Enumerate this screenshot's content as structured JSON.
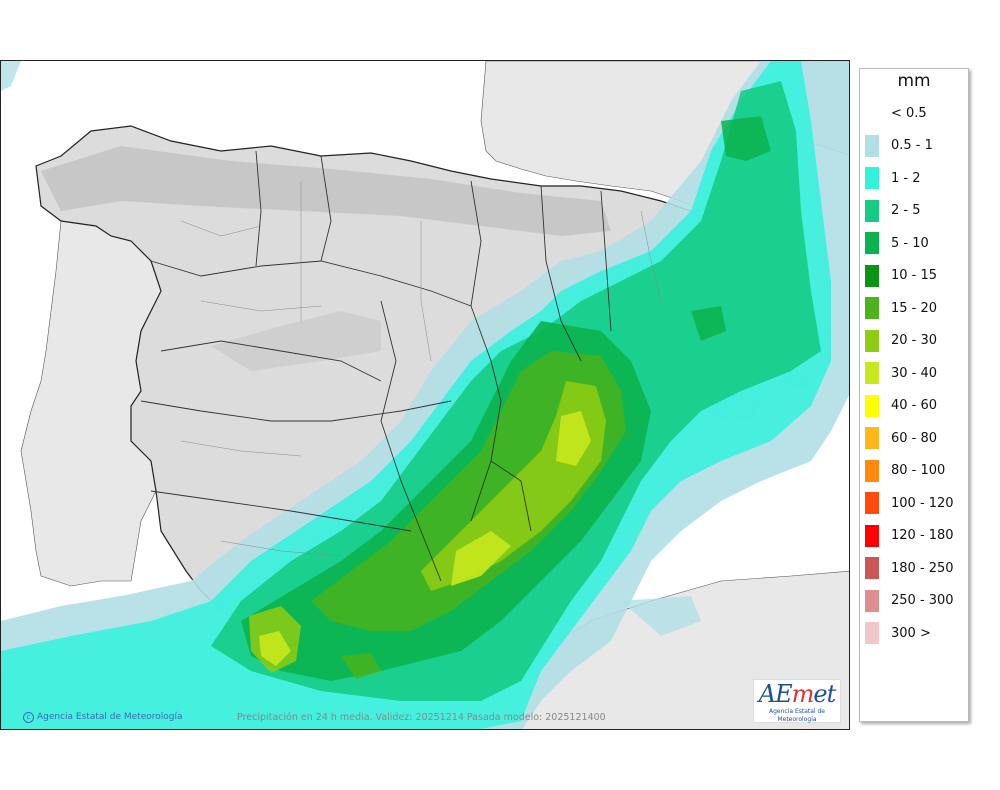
{
  "legend": {
    "unit": "mm",
    "items": [
      {
        "label": "< 0.5",
        "color": "#ffffff"
      },
      {
        "label": "0.5 - 1",
        "color": "#b0dfe6"
      },
      {
        "label": "1 - 2",
        "color": "#33f2dc"
      },
      {
        "label": "2 - 5",
        "color": "#16cc85"
      },
      {
        "label": "5 - 10",
        "color": "#0bb34f"
      },
      {
        "label": "10 - 15",
        "color": "#0a9415"
      },
      {
        "label": "15 - 20",
        "color": "#4cb31a"
      },
      {
        "label": "20 - 30",
        "color": "#8fcc14"
      },
      {
        "label": "30 - 40",
        "color": "#c6e81d"
      },
      {
        "label": "40 - 60",
        "color": "#ffff00"
      },
      {
        "label": "60 - 80",
        "color": "#ffb71a"
      },
      {
        "label": "80 - 100",
        "color": "#ff8a0d"
      },
      {
        "label": "100 - 120",
        "color": "#ff4a0d"
      },
      {
        "label": "120 - 180",
        "color": "#ff0000"
      },
      {
        "label": "180 - 250",
        "color": "#cc5555"
      },
      {
        "label": "250 - 300",
        "color": "#dd8f8f"
      },
      {
        "label": "300 >",
        "color": "#f0c6c6"
      }
    ]
  },
  "footer": {
    "credit": "Agencia Estatal de Meteorología",
    "caption": "Precipitación en 24 h media. Validez: 20251214 Pasada modelo: 2025121400"
  },
  "logo": {
    "subtitle": "Agencia Estatal de Meteorología"
  }
}
